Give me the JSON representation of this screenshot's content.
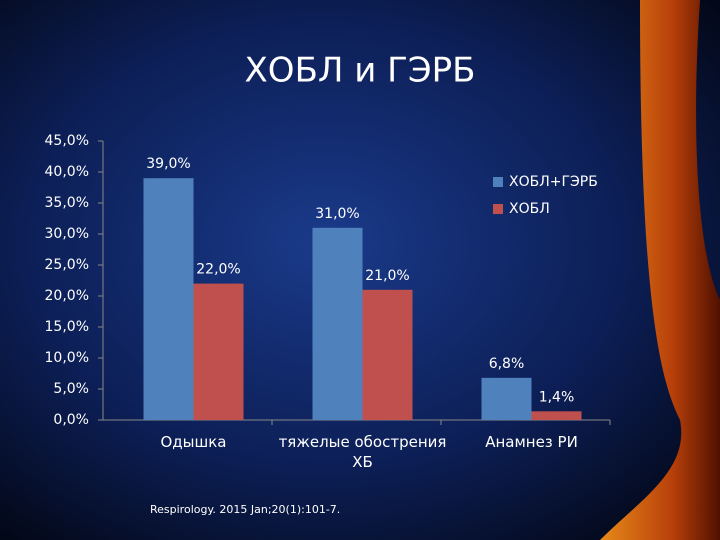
{
  "chart_data": {
    "type": "bar",
    "title": "ХОБЛ и ГЭРБ",
    "categories": [
      "Одышка",
      "тяжелые обострения ХБ",
      "Анамнез РИ"
    ],
    "series": [
      {
        "name": "ХОБЛ+ГЭРБ",
        "color": "#4f81bd",
        "values": [
          39,
          31,
          6.8
        ],
        "value_labels": [
          "39,0%",
          "31,0%",
          "6,8%"
        ]
      },
      {
        "name": "ХОБЛ",
        "color": "#c0504d",
        "values": [
          22,
          21,
          1.4
        ],
        "value_labels": [
          "22,0%",
          "21,0%",
          "1,4%"
        ]
      }
    ],
    "ylim": [
      0,
      45
    ],
    "yticks": [
      {
        "value": 0,
        "label": "0,0%"
      },
      {
        "value": 5,
        "label": "5,0%"
      },
      {
        "value": 10,
        "label": "10,0%"
      },
      {
        "value": 15,
        "label": "15,0%"
      },
      {
        "value": 20,
        "label": "20,0%"
      },
      {
        "value": 25,
        "label": "25,0%"
      },
      {
        "value": 30,
        "label": "30,0%"
      },
      {
        "value": 35,
        "label": "35,0%"
      },
      {
        "value": 40,
        "label": "40,0%"
      },
      {
        "value": 45,
        "label": "45,0%"
      }
    ],
    "legend": "right",
    "source": "Respirology. 2015 Jan;20(1):101-7."
  }
}
